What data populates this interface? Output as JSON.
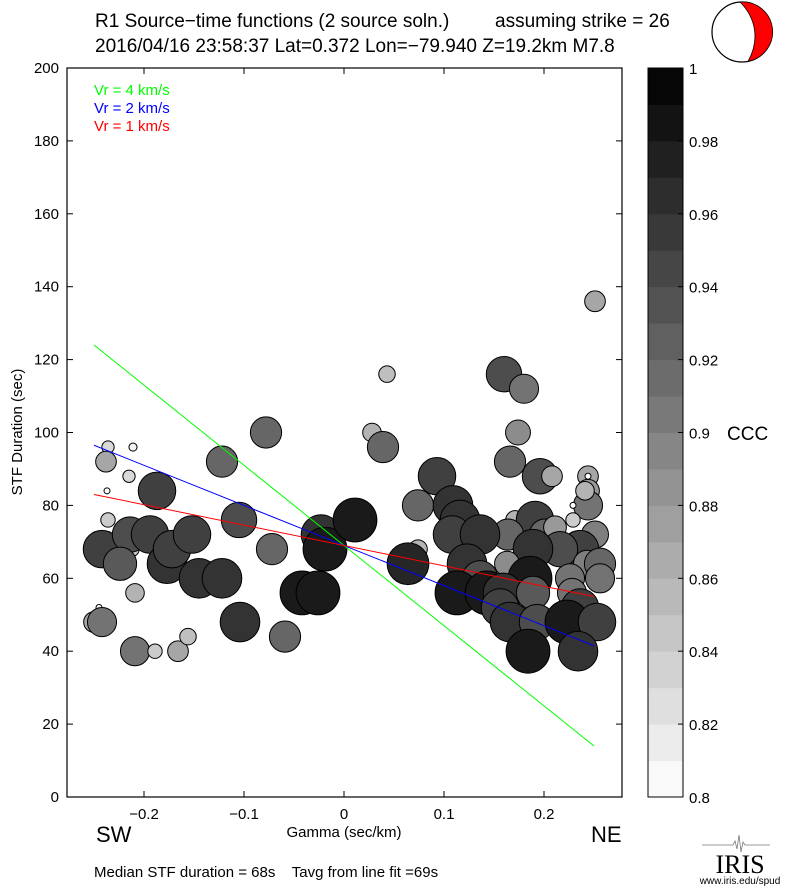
{
  "header": {
    "title": "R1 Source−time functions (2 source soln.)",
    "strike": "assuming strike = 26",
    "event": "2016/04/16 23:58:37  Lat=0.372 Lon=−79.940  Z=19.2km  M7.8"
  },
  "footer": {
    "summary": "Median STF duration = 68s    Tavg from line fit =69s",
    "logo_text": "IRIS",
    "logo_url": "www.iris.edu/spud"
  },
  "colors": {
    "green": "#00ff00",
    "blue": "#0000ff",
    "red": "#ff0000",
    "beachball": "#ff0000"
  },
  "chart_data": {
    "type": "scatter",
    "title": "R1 Source-time functions (2 source soln.)",
    "xlabel": "Gamma (sec/km)",
    "ylabel": "STF Duration (sec)",
    "xlim": [
      -0.277,
      0.278
    ],
    "ylim": [
      0,
      200
    ],
    "xticks": [
      -0.2,
      -0.1,
      0,
      0.1,
      0.2
    ],
    "xtick_labels": [
      "−0.2",
      "−0.1",
      "0",
      "0.1",
      "0.2"
    ],
    "yticks": [
      0,
      20,
      40,
      60,
      80,
      100,
      120,
      140,
      160,
      180,
      200
    ],
    "ytick_labels": [
      "0",
      "20",
      "40",
      "60",
      "80",
      "100",
      "120",
      "140",
      "160",
      "180",
      "200"
    ],
    "direction_labels": {
      "left": "SW",
      "right": "NE"
    },
    "legend": [
      {
        "label": "Vr = 4 km/s",
        "color": "#00ff00",
        "x": [
          -0.25,
          0.25
        ],
        "y": [
          124,
          14
        ]
      },
      {
        "label": "Vr = 2 km/s",
        "color": "#0000ff",
        "x": [
          -0.25,
          0.25
        ],
        "y": [
          96.5,
          41.5
        ]
      },
      {
        "label": "Vr = 1 km/s",
        "color": "#ff0000",
        "x": [
          -0.25,
          0.25
        ],
        "y": [
          83,
          55
        ]
      }
    ],
    "legend_position": "top-left",
    "colorbar": {
      "label": "CCC",
      "range": [
        0.8,
        1.0
      ],
      "bins": 20,
      "ticks": [
        "0.8",
        "0.82",
        "0.84",
        "0.86",
        "0.88",
        "0.9",
        "0.92",
        "0.94",
        "0.96",
        "0.98",
        "1"
      ]
    },
    "points_columns": [
      "gamma",
      "duration",
      "ccc"
    ],
    "points": [
      [
        -0.236,
        96,
        0.83
      ],
      [
        -0.211,
        96,
        0.81
      ],
      [
        -0.238,
        92,
        0.87
      ],
      [
        -0.215,
        88,
        0.83
      ],
      [
        -0.237,
        84,
        0.8
      ],
      [
        -0.187,
        84,
        0.95
      ],
      [
        -0.236,
        76,
        0.84
      ],
      [
        -0.212,
        68,
        0.84
      ],
      [
        -0.242,
        68,
        0.95
      ],
      [
        -0.214,
        72,
        0.94
      ],
      [
        -0.224,
        64,
        0.93
      ],
      [
        -0.194,
        72,
        0.95
      ],
      [
        -0.177,
        64,
        0.96
      ],
      [
        -0.172,
        68,
        0.95
      ],
      [
        -0.152,
        72,
        0.95
      ],
      [
        -0.145,
        60,
        0.96
      ],
      [
        -0.122,
        60,
        0.96
      ],
      [
        -0.209,
        56,
        0.86
      ],
      [
        -0.245,
        52,
        0.8
      ],
      [
        -0.25,
        48,
        0.87
      ],
      [
        -0.242,
        48,
        0.91
      ],
      [
        -0.209,
        40,
        0.91
      ],
      [
        -0.189,
        40,
        0.84
      ],
      [
        -0.166,
        40,
        0.87
      ],
      [
        -0.156,
        44,
        0.85
      ],
      [
        -0.122,
        92,
        0.92
      ],
      [
        -0.078,
        100,
        0.92
      ],
      [
        -0.105,
        76,
        0.94
      ],
      [
        -0.072,
        68,
        0.92
      ],
      [
        -0.104,
        48,
        0.96
      ],
      [
        -0.059,
        44,
        0.92
      ],
      [
        -0.042,
        56,
        0.98
      ],
      [
        -0.026,
        56,
        0.98
      ],
      [
        -0.023,
        72,
        0.96
      ],
      [
        -0.019,
        68,
        0.98
      ],
      [
        0.011,
        76,
        0.98
      ],
      [
        0.043,
        116,
        0.85
      ],
      [
        0.028,
        100,
        0.86
      ],
      [
        0.039,
        96,
        0.92
      ],
      [
        0.074,
        68,
        0.86
      ],
      [
        0.064,
        64,
        0.97
      ],
      [
        0.251,
        136,
        0.87
      ],
      [
        0.16,
        116,
        0.94
      ],
      [
        0.18,
        112,
        0.91
      ],
      [
        0.174,
        100,
        0.89
      ],
      [
        0.166,
        92,
        0.92
      ],
      [
        0.196,
        88,
        0.94
      ],
      [
        0.208,
        88,
        0.87
      ],
      [
        0.093,
        88,
        0.95
      ],
      [
        0.074,
        80,
        0.92
      ],
      [
        0.109,
        80,
        0.96
      ],
      [
        0.116,
        76,
        0.96
      ],
      [
        0.244,
        88,
        0.87
      ],
      [
        0.244,
        88,
        0.8
      ],
      [
        0.244,
        84,
        0.88
      ],
      [
        0.244,
        80,
        0.91
      ],
      [
        0.229,
        80,
        0.8
      ],
      [
        0.171,
        76,
        0.86
      ],
      [
        0.191,
        76,
        0.95
      ],
      [
        0.164,
        72,
        0.92
      ],
      [
        0.201,
        72,
        0.92
      ],
      [
        0.251,
        72,
        0.9
      ],
      [
        0.108,
        72,
        0.95
      ],
      [
        0.136,
        72,
        0.96
      ],
      [
        0.229,
        76,
        0.84
      ],
      [
        0.211,
        74,
        0.88
      ],
      [
        0.241,
        84,
        0.86
      ],
      [
        0.236,
        68,
        0.95
      ],
      [
        0.216,
        68,
        0.94
      ],
      [
        0.189,
        68,
        0.96
      ],
      [
        0.163,
        64,
        0.89
      ],
      [
        0.243,
        64,
        0.9
      ],
      [
        0.256,
        64,
        0.92
      ],
      [
        0.123,
        64,
        0.96
      ],
      [
        0.136,
        60,
        0.94
      ],
      [
        0.186,
        60,
        0.98
      ],
      [
        0.226,
        60,
        0.91
      ],
      [
        0.256,
        60,
        0.91
      ],
      [
        0.113,
        56,
        0.98
      ],
      [
        0.143,
        56,
        0.98
      ],
      [
        0.159,
        56,
        0.96
      ],
      [
        0.189,
        56,
        0.93
      ],
      [
        0.228,
        56,
        0.91
      ],
      [
        0.156,
        52,
        0.95
      ],
      [
        0.236,
        52,
        0.95
      ],
      [
        0.166,
        48,
        0.96
      ],
      [
        0.193,
        48,
        0.94
      ],
      [
        0.223,
        48,
        0.98
      ],
      [
        0.253,
        48,
        0.95
      ],
      [
        0.184,
        40,
        0.98
      ],
      [
        0.234,
        40,
        0.96
      ]
    ]
  }
}
